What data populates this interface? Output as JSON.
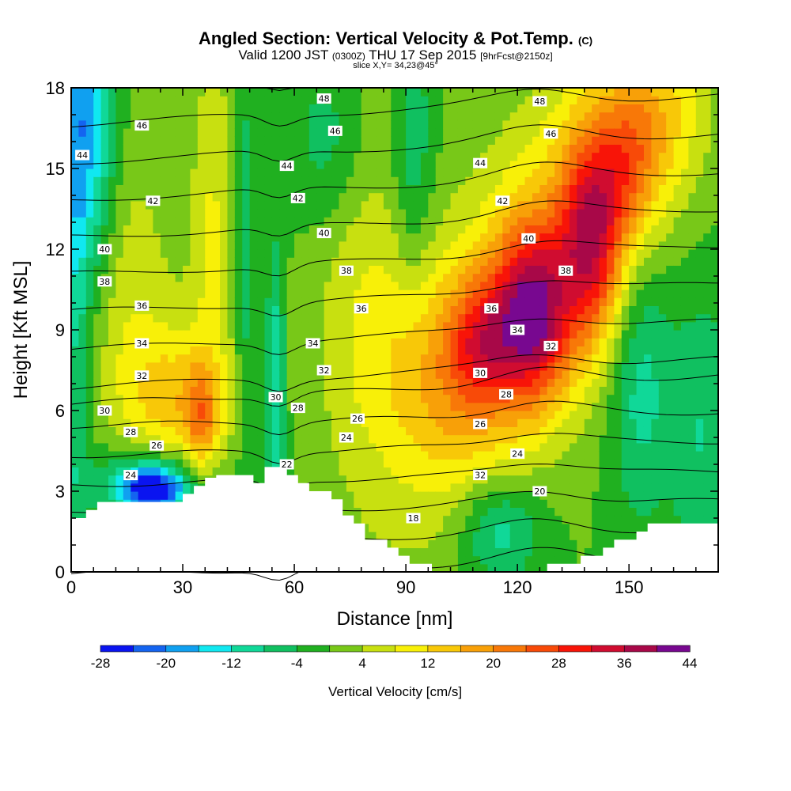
{
  "header": {
    "title_main": "Angled Section: Vertical Velocity & Pot.Temp.",
    "title_mark": "(C)",
    "valid_a": "Valid 1200 JST",
    "valid_b": "(0300Z)",
    "valid_c": "THU 17 Sep 2015",
    "valid_d": "[9hrFcst@2150z]",
    "slice": "slice X,Y= 34,23@45°"
  },
  "chart_data": {
    "type": "heatmap",
    "xlabel": "Distance [nm]",
    "ylabel": "Height [Kft MSL]",
    "xlim": [
      0,
      174
    ],
    "ylim": [
      0,
      18
    ],
    "x_ticks": [
      "0",
      "30",
      "60",
      "90",
      "120",
      "150"
    ],
    "y_ticks": [
      "0",
      "3",
      "6",
      "9",
      "12",
      "15",
      "18"
    ],
    "colorbar": {
      "label": "Vertical Velocity [cm/s]",
      "tick_labels": [
        "-28",
        "-20",
        "-12",
        "-4",
        "4",
        "12",
        "20",
        "28",
        "36",
        "44"
      ],
      "levels": [
        -28,
        -24,
        -20,
        -16,
        -12,
        -8,
        -4,
        0,
        4,
        8,
        12,
        16,
        20,
        24,
        28,
        32,
        36,
        40,
        44
      ],
      "colors": [
        "#0a14f0",
        "#1464f0",
        "#10a0f0",
        "#10e8f0",
        "#10d898",
        "#10c060",
        "#20b020",
        "#78c818",
        "#c8e010",
        "#f8f008",
        "#f8c808",
        "#f8a008",
        "#f87808",
        "#f84a08",
        "#f81408",
        "#d00c30",
        "#a80848",
        "#780890"
      ]
    },
    "theta_contours": {
      "levels": [
        18,
        20,
        22,
        24,
        26,
        28,
        30,
        32,
        34,
        36,
        38,
        40,
        42,
        44,
        46,
        48
      ],
      "labels": [
        {
          "text": "48",
          "x": 68,
          "y": 17.6
        },
        {
          "text": "48",
          "x": 126,
          "y": 17.5
        },
        {
          "text": "46",
          "x": 19,
          "y": 16.6
        },
        {
          "text": "46",
          "x": 71,
          "y": 16.4
        },
        {
          "text": "46",
          "x": 129,
          "y": 16.3
        },
        {
          "text": "44",
          "x": 3,
          "y": 15.5
        },
        {
          "text": "44",
          "x": 58,
          "y": 15.1
        },
        {
          "text": "44",
          "x": 110,
          "y": 15.2
        },
        {
          "text": "42",
          "x": 22,
          "y": 13.8
        },
        {
          "text": "42",
          "x": 61,
          "y": 13.9
        },
        {
          "text": "42",
          "x": 116,
          "y": 13.8
        },
        {
          "text": "40",
          "x": 9,
          "y": 12.0
        },
        {
          "text": "40",
          "x": 68,
          "y": 12.6
        },
        {
          "text": "40",
          "x": 123,
          "y": 12.4
        },
        {
          "text": "38",
          "x": 9,
          "y": 10.8
        },
        {
          "text": "38",
          "x": 74,
          "y": 11.2
        },
        {
          "text": "38",
          "x": 133,
          "y": 11.2
        },
        {
          "text": "36",
          "x": 19,
          "y": 9.9
        },
        {
          "text": "36",
          "x": 78,
          "y": 9.8
        },
        {
          "text": "36",
          "x": 113,
          "y": 9.8
        },
        {
          "text": "34",
          "x": 19,
          "y": 8.5
        },
        {
          "text": "34",
          "x": 65,
          "y": 8.5
        },
        {
          "text": "34",
          "x": 120,
          "y": 9.0
        },
        {
          "text": "32",
          "x": 19,
          "y": 7.3
        },
        {
          "text": "32",
          "x": 68,
          "y": 7.5
        },
        {
          "text": "32",
          "x": 129,
          "y": 8.4
        },
        {
          "text": "30",
          "x": 9,
          "y": 6.0
        },
        {
          "text": "30",
          "x": 55,
          "y": 6.5
        },
        {
          "text": "30",
          "x": 110,
          "y": 7.4
        },
        {
          "text": "28",
          "x": 16,
          "y": 5.2
        },
        {
          "text": "28",
          "x": 61,
          "y": 6.1
        },
        {
          "text": "28",
          "x": 117,
          "y": 6.6
        },
        {
          "text": "26",
          "x": 23,
          "y": 4.7
        },
        {
          "text": "26",
          "x": 77,
          "y": 5.7
        },
        {
          "text": "26",
          "x": 110,
          "y": 5.5
        },
        {
          "text": "24",
          "x": 16,
          "y": 3.6
        },
        {
          "text": "24",
          "x": 74,
          "y": 5.0
        },
        {
          "text": "24",
          "x": 120,
          "y": 4.4
        },
        {
          "text": "22",
          "x": 58,
          "y": 4.0
        },
        {
          "text": "32",
          "x": 110,
          "y": 3.6
        },
        {
          "text": "20",
          "x": 126,
          "y": 3.0
        },
        {
          "text": "18",
          "x": 92,
          "y": 2.0
        }
      ]
    }
  }
}
